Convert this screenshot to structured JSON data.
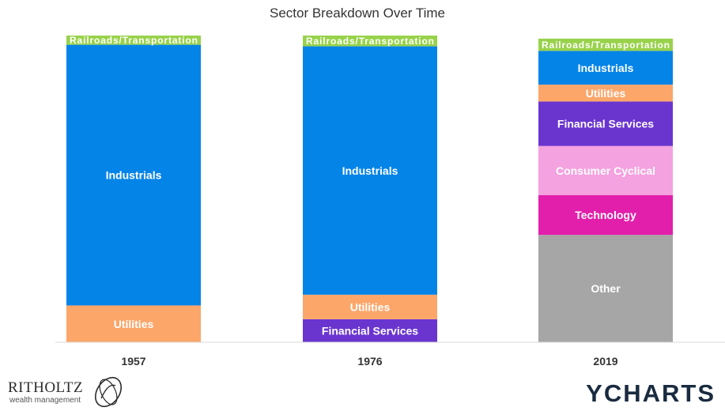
{
  "chart_data": {
    "type": "bar",
    "stacked": true,
    "normalized_percent": true,
    "title": "Sector Breakdown Over Time",
    "categories": [
      "1957",
      "1976",
      "2019"
    ],
    "series": [
      {
        "name": "Other",
        "color": "#a6a6a6",
        "values": [
          0,
          0,
          35
        ]
      },
      {
        "name": "Technology",
        "color": "#e21fab",
        "values": [
          0,
          0,
          13
        ]
      },
      {
        "name": "Consumer Cyclical",
        "color": "#f4a2e0",
        "values": [
          0,
          0,
          16
        ]
      },
      {
        "name": "Financial Services",
        "color": "#6a35cf",
        "values": [
          0,
          7.5,
          14.5
        ]
      },
      {
        "name": "Utilities",
        "color": "#fca66a",
        "values": [
          12,
          8,
          5.5
        ]
      },
      {
        "name": "Industrials",
        "color": "#0584e8",
        "values": [
          85,
          81,
          11
        ]
      },
      {
        "name": "Railroads/Transportation",
        "color": "#98d24b",
        "values": [
          3,
          3.5,
          4
        ]
      }
    ],
    "ylim": [
      0,
      100
    ],
    "grid": false,
    "legend": "none"
  },
  "branding": {
    "left_logo_name": "RITHOLTZ",
    "left_logo_sub": "wealth management",
    "right_logo": "YCHARTS"
  }
}
